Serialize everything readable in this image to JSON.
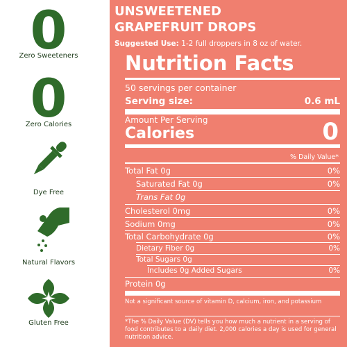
{
  "features": [
    {
      "glyph": "0",
      "label": "Zero Sweeteners"
    },
    {
      "glyph": "0",
      "label": "Zero Calories"
    },
    {
      "label": "Dye Free"
    },
    {
      "label": "Natural Flavors"
    },
    {
      "label": "Gluten Free"
    }
  ],
  "header": {
    "title_line1": "UNSWEETENED",
    "title_line2": "GRAPEFRUIT DROPS",
    "suggested_use_label": "Suggested Use:",
    "suggested_use": "1-2 full droppers in 8 oz of water."
  },
  "nutrition": {
    "title": "Nutrition Facts",
    "servings": "50 servings per container",
    "serving_size_label": "Serving size:",
    "serving_size_value": "0.6 mL",
    "amount_per_serving": "Amount Per Serving",
    "calories_label": "Calories",
    "calories_value": "0",
    "daily_value_header": "% Daily Value*",
    "rows": [
      {
        "label": "Total Fat 0g",
        "dv": "0%"
      },
      {
        "label": "Saturated Fat 0g",
        "dv": "0%"
      },
      {
        "label": "Trans Fat 0g"
      },
      {
        "label": "Cholesterol 0mg",
        "dv": "0%"
      },
      {
        "label": "Sodium 0mg",
        "dv": "0%"
      },
      {
        "label": "Total Carbohydrate 0g",
        "dv": "0%"
      },
      {
        "label": "Dietary Fiber 0g",
        "dv": "0%"
      },
      {
        "label": "Total Sugars 0g"
      },
      {
        "label": "Includes 0g Added Sugars",
        "dv": "0%"
      },
      {
        "label": "Protein 0g"
      }
    ],
    "note": "Not a significant source of vitamin D, calcium, iron, and potassium",
    "footnote": "*The % Daily Value (DV) tells you how much a nutrient in a serving of food contributes to a daily diet. 2,000 calories a day is used for general nutrition advice."
  }
}
